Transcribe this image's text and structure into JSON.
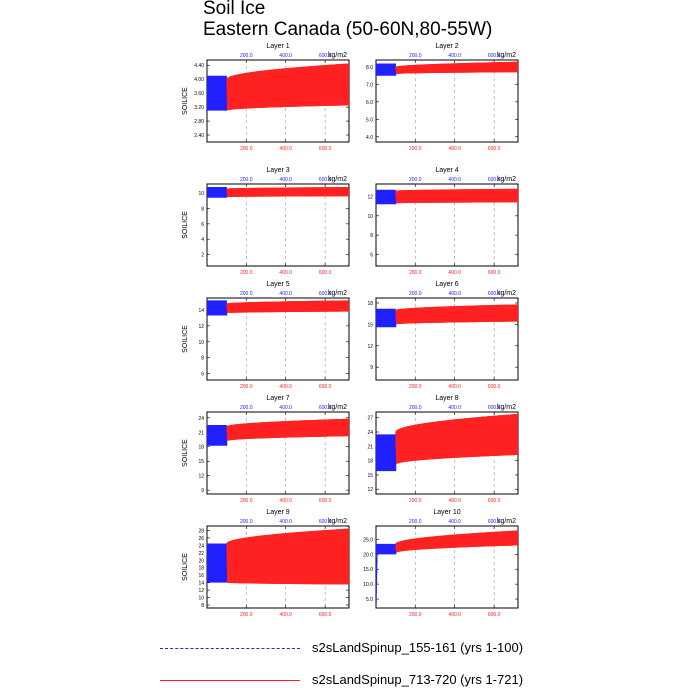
{
  "title": {
    "line1": "Soil Ice",
    "line2": "Eastern Canada (50-60N,80-55W)"
  },
  "colors": {
    "series_1": "#2020ff",
    "series_2": "#ff2020",
    "grid": "#999999"
  },
  "chart_data": [
    {
      "type": "line",
      "title": "Layer 1",
      "ylabel": "SOILICE",
      "top_axis_unit": "kg/m2",
      "yticks": [
        "2.40",
        "2.80",
        "3.20",
        "3.60",
        "4.00",
        "4.40"
      ],
      "ylim": [
        2.2,
        4.55
      ],
      "top_xticks": [
        "200.0",
        "400.0",
        "600.0"
      ],
      "bottom_xticks": [
        "200.0",
        "400.0",
        "600.0"
      ],
      "series": [
        {
          "name": "s2sLandSpinup_155-161 (yrs 1-100)",
          "x_range_years": [
            1,
            100
          ],
          "low": 3.1,
          "high": 4.1
        },
        {
          "name": "s2sLandSpinup_713-720 (yrs 1-721)",
          "x_range_years": [
            100,
            721
          ],
          "low_start": 3.1,
          "low_end": 3.25,
          "high_start": 4.0,
          "high_end": 4.45
        }
      ]
    },
    {
      "type": "line",
      "title": "Layer 2",
      "ylabel": "",
      "top_axis_unit": "kg/m2",
      "yticks": [
        "4.0",
        "5.0",
        "6.0",
        "7.0",
        "8.0"
      ],
      "ylim": [
        3.7,
        8.4
      ],
      "top_xticks": [
        "200.0",
        "400.0",
        "600.0"
      ],
      "bottom_xticks": [
        "200.0",
        "400.0",
        "600.0"
      ],
      "series": [
        {
          "name": "s2sLandSpinup_155-161 (yrs 1-100)",
          "x_range_years": [
            1,
            100
          ],
          "low": 7.5,
          "high": 8.2
        },
        {
          "name": "s2sLandSpinup_713-720 (yrs 1-721)",
          "x_range_years": [
            100,
            721
          ],
          "low_start": 7.6,
          "low_end": 7.7,
          "high_start": 8.0,
          "high_end": 8.3
        }
      ]
    },
    {
      "type": "line",
      "title": "Layer 3",
      "ylabel": "SOILICE",
      "top_axis_unit": "kg/m2",
      "yticks": [
        "2",
        "4",
        "6",
        "8",
        "10"
      ],
      "ylim": [
        0.5,
        11.2
      ],
      "top_xticks": [
        "200.0",
        "400.0",
        "600.0"
      ],
      "bottom_xticks": [
        "200.0",
        "400.0",
        "600.0"
      ],
      "series": [
        {
          "name": "s2sLandSpinup_155-161 (yrs 1-100)",
          "x_range_years": [
            1,
            100
          ],
          "low": 9.4,
          "high": 10.8
        },
        {
          "name": "s2sLandSpinup_713-720 (yrs 1-721)",
          "x_range_years": [
            100,
            721
          ],
          "low_start": 9.5,
          "low_end": 9.6,
          "high_start": 10.6,
          "high_end": 10.8
        }
      ]
    },
    {
      "type": "line",
      "title": "Layer 4",
      "ylabel": "",
      "top_axis_unit": "kg/m2",
      "yticks": [
        "6",
        "8",
        "10",
        "12"
      ],
      "ylim": [
        4.8,
        13.3
      ],
      "top_xticks": [
        "200.0",
        "400.0",
        "600.0"
      ],
      "bottom_xticks": [
        "200.0",
        "400.0",
        "600.0"
      ],
      "series": [
        {
          "name": "s2sLandSpinup_155-161 (yrs 1-100)",
          "x_range_years": [
            1,
            100
          ],
          "low": 11.2,
          "high": 12.7
        },
        {
          "name": "s2sLandSpinup_713-720 (yrs 1-721)",
          "x_range_years": [
            100,
            721
          ],
          "low_start": 11.3,
          "low_end": 11.4,
          "high_start": 12.6,
          "high_end": 12.8
        }
      ]
    },
    {
      "type": "line",
      "title": "Layer 5",
      "ylabel": "SOILICE",
      "top_axis_unit": "kg/m2",
      "yticks": [
        "6",
        "8",
        "10",
        "12",
        "14"
      ],
      "ylim": [
        5.2,
        15.5
      ],
      "top_xticks": [
        "200.0",
        "400.0",
        "600.0"
      ],
      "bottom_xticks": [
        "200.0",
        "400.0",
        "600.0"
      ],
      "series": [
        {
          "name": "s2sLandSpinup_155-161 (yrs 1-100)",
          "x_range_years": [
            1,
            100
          ],
          "low": 13.3,
          "high": 15.2
        },
        {
          "name": "s2sLandSpinup_713-720 (yrs 1-721)",
          "x_range_years": [
            100,
            721
          ],
          "low_start": 13.6,
          "low_end": 13.8,
          "high_start": 14.8,
          "high_end": 15.2
        }
      ]
    },
    {
      "type": "line",
      "title": "Layer 6",
      "ylabel": "",
      "top_axis_unit": "kg/m2",
      "yticks": [
        "9",
        "12",
        "15",
        "18"
      ],
      "ylim": [
        7.2,
        18.7
      ],
      "top_xticks": [
        "200.0",
        "400.0",
        "600.0"
      ],
      "bottom_xticks": [
        "200.0",
        "400.0",
        "600.0"
      ],
      "series": [
        {
          "name": "s2sLandSpinup_155-161 (yrs 1-100)",
          "x_range_years": [
            1,
            100
          ],
          "low": 14.6,
          "high": 17.2
        },
        {
          "name": "s2sLandSpinup_713-720 (yrs 1-721)",
          "x_range_years": [
            100,
            721
          ],
          "low_start": 15.0,
          "low_end": 15.4,
          "high_start": 17.0,
          "high_end": 17.8
        }
      ]
    },
    {
      "type": "line",
      "title": "Layer 7",
      "ylabel": "SOILICE",
      "top_axis_unit": "kg/m2",
      "yticks": [
        "9",
        "12",
        "15",
        "18",
        "21",
        "24"
      ],
      "ylim": [
        8.2,
        25.2
      ],
      "top_xticks": [
        "200.0",
        "400.0",
        "600.0"
      ],
      "bottom_xticks": [
        "200.0",
        "400.0",
        "600.0"
      ],
      "series": [
        {
          "name": "s2sLandSpinup_155-161 (yrs 1-100)",
          "x_range_years": [
            1,
            100
          ],
          "low": 18.2,
          "high": 22.5
        },
        {
          "name": "s2sLandSpinup_713-720 (yrs 1-721)",
          "x_range_years": [
            100,
            721
          ],
          "low_start": 19.2,
          "low_end": 20.2,
          "high_start": 22.2,
          "high_end": 23.8
        }
      ]
    },
    {
      "type": "line",
      "title": "Layer 8",
      "ylabel": "",
      "top_axis_unit": "kg/m2",
      "yticks": [
        "12",
        "15",
        "18",
        "21",
        "24",
        "27"
      ],
      "ylim": [
        11.0,
        28.2
      ],
      "top_xticks": [
        "200.0",
        "400.0",
        "600.0"
      ],
      "bottom_xticks": [
        "200.0",
        "400.0",
        "600.0"
      ],
      "series": [
        {
          "name": "s2sLandSpinup_155-161 (yrs 1-100)",
          "x_range_years": [
            1,
            100
          ],
          "low": 15.8,
          "high": 23.5
        },
        {
          "name": "s2sLandSpinup_713-720 (yrs 1-721)",
          "x_range_years": [
            100,
            721
          ],
          "low_start": 17.2,
          "low_end": 19.2,
          "high_start": 24.0,
          "high_end": 27.8
        }
      ]
    },
    {
      "type": "line",
      "title": "Layer 9",
      "ylabel": "SOILICE",
      "top_axis_unit": "kg/m2",
      "yticks": [
        "8",
        "10",
        "12",
        "14",
        "16",
        "18",
        "20",
        "22",
        "24",
        "26",
        "28"
      ],
      "ylim": [
        7.2,
        29.2
      ],
      "top_xticks": [
        "200.0",
        "400.0",
        "600.0"
      ],
      "bottom_xticks": [
        "200.0",
        "400.0",
        "600.0"
      ],
      "series": [
        {
          "name": "s2sLandSpinup_155-161 (yrs 1-100)",
          "x_range_years": [
            1,
            100
          ],
          "low": 14.0,
          "high": 24.5
        },
        {
          "name": "s2sLandSpinup_713-720 (yrs 1-721)",
          "x_range_years": [
            100,
            721
          ],
          "low_start": 14.0,
          "low_end": 13.5,
          "high_start": 24.5,
          "high_end": 28.5
        }
      ]
    },
    {
      "type": "line",
      "title": "Layer 10",
      "ylabel": "",
      "top_axis_unit": "kg/m2",
      "yticks": [
        "5.0",
        "10.0",
        "15.0",
        "20.0",
        "25.0"
      ],
      "ylim": [
        2.0,
        29.5
      ],
      "top_xticks": [
        "200.0",
        "400.0",
        "600.0"
      ],
      "bottom_xticks": [
        "200.0",
        "400.0",
        "600.0"
      ],
      "series": [
        {
          "name": "s2sLandSpinup_155-161 (yrs 1-100)",
          "x_range_years": [
            1,
            100
          ],
          "low": 20.0,
          "high": 23.5,
          "initial_spike_low": 3.5
        },
        {
          "name": "s2sLandSpinup_713-720 (yrs 1-721)",
          "x_range_years": [
            100,
            721
          ],
          "low_start": 20.5,
          "low_end": 23.0,
          "high_start": 23.5,
          "high_end": 28.0
        }
      ]
    }
  ],
  "legend": {
    "items": [
      {
        "label": "s2sLandSpinup_155-161 (yrs 1-100)",
        "color": "#2020ff",
        "style": "dashed"
      },
      {
        "label": "s2sLandSpinup_713-720 (yrs 1-721)",
        "color": "#ff2020",
        "style": "solid"
      }
    ]
  }
}
